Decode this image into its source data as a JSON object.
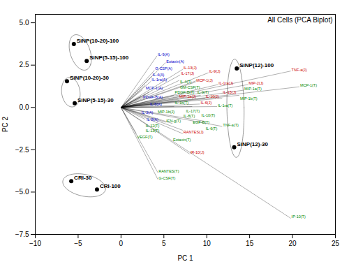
{
  "chart_data": {
    "type": "biplot",
    "title": "All Cells (PCA Biplot)",
    "xlabel": "PC 1",
    "ylabel": "PC 2",
    "xlim": [
      -10,
      25
    ],
    "ylim": [
      -7.5,
      5.5
    ],
    "xticks": [
      -10,
      -5,
      0,
      5,
      10,
      15,
      20,
      25
    ],
    "yticks": [
      -7.5,
      {
        "value": -5.0,
        "label": "−5.0"
      },
      -2.5,
      {
        "value": 0.0,
        "label": "0.0"
      },
      2.5,
      {
        "value": 5.0,
        "label": "5.0"
      }
    ],
    "grid": false,
    "scores": [
      {
        "label": "SiNP(10-20)-100",
        "x": -5.5,
        "y": 3.75
      },
      {
        "label": "SiNP(5-15)-100",
        "x": -4.0,
        "y": 2.75
      },
      {
        "label": "SiNP(10-20)-30",
        "x": -6.3,
        "y": 1.55
      },
      {
        "label": "SiNP(5-15)-30",
        "x": -5.4,
        "y": 0.25
      },
      {
        "label": "SiNP(12)-100",
        "x": 13.5,
        "y": 2.3
      },
      {
        "label": "SiNP(12)-30",
        "x": 13.2,
        "y": -2.35
      },
      {
        "label": "CRI-30",
        "x": -5.8,
        "y": -4.35
      },
      {
        "label": "CRI-100",
        "x": -2.8,
        "y": -4.85
      }
    ],
    "ellipses": [
      {
        "cx": -4.75,
        "cy": 3.25,
        "width": 2.8,
        "height": 1.8,
        "angle": -30
      },
      {
        "cx": -5.85,
        "cy": 0.9,
        "width": 2.2,
        "height": 1.7,
        "angle": -15
      },
      {
        "cx": 13.35,
        "cy": -0.05,
        "width": 2.0,
        "height": 5.8,
        "angle": 2
      },
      {
        "cx": -4.3,
        "cy": -4.6,
        "width": 5.0,
        "height": 1.3,
        "angle": -5
      }
    ],
    "loadings": [
      {
        "label": "IL-9(A)",
        "x": 4.2,
        "y": 3.05,
        "color": "#0000cc"
      },
      {
        "label": "Eotaxin(A)",
        "x": 5.2,
        "y": 2.65,
        "color": "#0000cc"
      },
      {
        "label": "G-CSF(A)",
        "x": 3.9,
        "y": 2.2,
        "color": "#0000cc"
      },
      {
        "label": "IL-4(A)",
        "x": 3.6,
        "y": 1.85,
        "color": "#0000cc"
      },
      {
        "label": "IL-1ra(A)",
        "x": 3.5,
        "y": 1.55,
        "color": "#0000cc"
      },
      {
        "label": "MCP-1(A)",
        "x": 2.8,
        "y": 1.3,
        "color": "#0000cc"
      },
      {
        "label": "PDGF-B(A)",
        "x": 2.5,
        "y": 1.05,
        "color": "#0000cc"
      },
      {
        "label": "IL-6(A)",
        "x": 3.3,
        "y": 0.9,
        "color": "#0000cc"
      },
      {
        "label": "IL-3(A)",
        "x": 2.3,
        "y": 0.65,
        "color": "#0000cc"
      },
      {
        "label": "IL-8(A)",
        "x": 2.9,
        "y": 0.75,
        "color": "#0000cc"
      },
      {
        "label": "IL-13(J)",
        "x": 7.2,
        "y": 2.25,
        "color": "#cc0000"
      },
      {
        "label": "IL-17(J)",
        "x": 6.9,
        "y": 1.92,
        "color": "#cc0000"
      },
      {
        "label": "IL-9(J)",
        "x": 10.2,
        "y": 2.05,
        "color": "#cc0000"
      },
      {
        "label": "MCP-1(J)",
        "x": 8.7,
        "y": 1.5,
        "color": "#cc0000"
      },
      {
        "label": "IL-1ra(J)",
        "x": 11.3,
        "y": 1.35,
        "color": "#cc0000"
      },
      {
        "label": "MIP-2(J)",
        "x": 14.8,
        "y": 1.35,
        "color": "#cc0000"
      },
      {
        "label": "MIP-1a(J)",
        "x": 6.7,
        "y": 0.55,
        "color": "#cc0000"
      },
      {
        "label": "IL-10(J)",
        "x": 9.8,
        "y": 0.55,
        "color": "#cc0000"
      },
      {
        "label": "IL-15(J)",
        "x": 11.8,
        "y": 0.55,
        "color": "#cc0000"
      },
      {
        "label": "IL-6(J)",
        "x": 9.2,
        "y": 0.2,
        "color": "#cc0000"
      },
      {
        "label": "RANTES(J)",
        "x": 7.2,
        "y": -1.55,
        "color": "#cc0000"
      },
      {
        "label": "IR-10(J)",
        "x": 8.0,
        "y": -2.75,
        "color": "#cc0000"
      },
      {
        "label": "TNF-a(J)",
        "x": 19.8,
        "y": 2.15,
        "color": "#cc0000"
      },
      {
        "label": "GM-CSF(T)",
        "x": 6.8,
        "y": 1.6,
        "color": "#008800"
      },
      {
        "label": "IL-9(T)",
        "x": 8.8,
        "y": 1.58,
        "color": "#008800"
      },
      {
        "label": "IL-1b(T)",
        "x": 6.2,
        "y": 0.72,
        "color": "#008800"
      },
      {
        "label": "IL-17(T)",
        "x": 7.5,
        "y": 0.72,
        "color": "#008800"
      },
      {
        "label": "IL-10(T)",
        "x": 9.3,
        "y": 0.72,
        "color": "#008800"
      },
      {
        "label": "MIP-1b(J)",
        "x": 4.2,
        "y": 0.18,
        "color": "#008800"
      },
      {
        "label": "IL-4(T)",
        "x": 6.8,
        "y": 0.42,
        "color": "#008800"
      },
      {
        "label": "PDGF-B(T)",
        "x": 6.2,
        "y": 0.05,
        "color": "#008800"
      },
      {
        "label": "EGF-B(T)",
        "x": 8.3,
        "y": 0.05,
        "color": "#008800"
      },
      {
        "label": "IL-1ra(T)",
        "x": 11.2,
        "y": 0.05,
        "color": "#008800"
      },
      {
        "label": "IL-12(T)",
        "x": 2.8,
        "y": -0.4,
        "color": "#008800"
      },
      {
        "label": "IL-13(T)",
        "x": 2.8,
        "y": -0.7,
        "color": "#008800"
      },
      {
        "label": "IFN-g(T)",
        "x": 5.2,
        "y": -0.88,
        "color": "#008800"
      },
      {
        "label": "Eotaxin(T)",
        "x": 6.0,
        "y": -0.95,
        "color": "#008800"
      },
      {
        "label": "IL-6(T)",
        "x": 9.8,
        "y": -0.82,
        "color": "#008800"
      },
      {
        "label": "IL-8(T)",
        "x": 7.2,
        "y": -1.35,
        "color": "#008800"
      },
      {
        "label": "TNF-a(T)",
        "x": 11.8,
        "y": -1.12,
        "color": "#008800"
      },
      {
        "label": "VEGF(T)",
        "x": 1.8,
        "y": -1.55,
        "color": "#008800"
      },
      {
        "label": "MIP-1b(T)",
        "x": 13.8,
        "y": 0.72,
        "color": "#008800"
      },
      {
        "label": "MIP-1a(T)",
        "x": 14.3,
        "y": 1.02,
        "color": "#008800"
      },
      {
        "label": "MCP-1(T)",
        "x": 20.8,
        "y": 1.22,
        "color": "#008800"
      },
      {
        "label": "RANTES(T)",
        "x": 4.3,
        "y": -3.85,
        "color": "#008800"
      },
      {
        "label": "G-CSF(T)",
        "x": 4.3,
        "y": -4.25,
        "color": "#008800"
      },
      {
        "label": "IP-10(T)",
        "x": 19.8,
        "y": -6.55,
        "color": "#008800"
      }
    ]
  }
}
